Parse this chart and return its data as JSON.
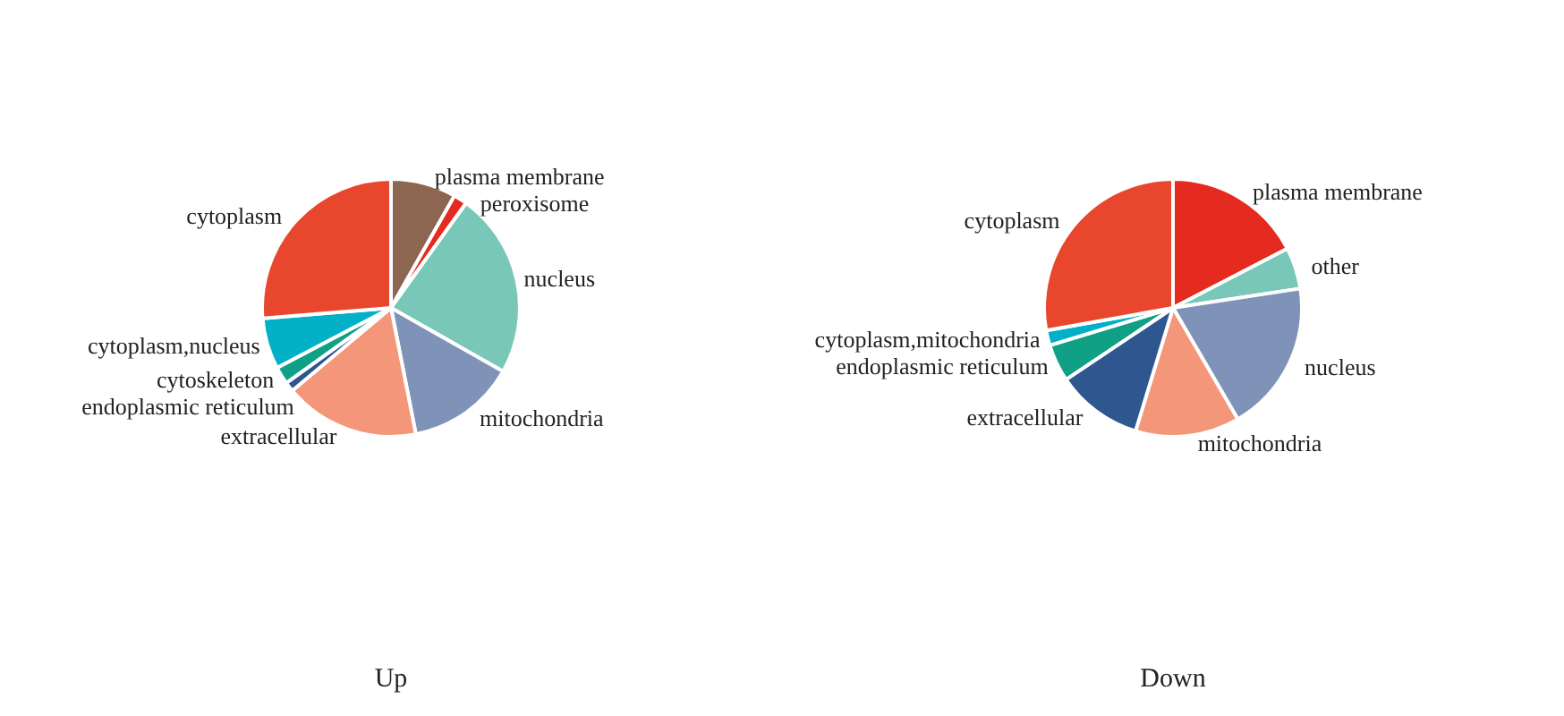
{
  "chart_data": [
    {
      "type": "pie",
      "title": "Up",
      "categories": [
        "plasma membrane",
        "peroxisome",
        "nucleus",
        "mitochondria",
        "extracellular",
        "endoplasmic reticulum",
        "cytoskeleton",
        "cytoplasm,nucleus",
        "cytoplasm"
      ],
      "values": [
        8.2,
        1.7,
        23.3,
        13.7,
        17,
        1.2,
        2.2,
        6.4,
        26.3
      ],
      "colors": [
        "#8c6650",
        "#e52a20",
        "#79c7b9",
        "#7f93b9",
        "#f4967a",
        "#2e5790",
        "#10a085",
        "#02b0c8",
        "#e8472d"
      ]
    },
    {
      "type": "pie",
      "title": "Down",
      "categories": [
        "plasma membrane",
        "other",
        "nucleus",
        "mitochondria",
        "extracellular",
        "endoplasmic reticulum",
        "cytoplasm,mitochondria",
        "cytoplasm"
      ],
      "values": [
        17.4,
        5.2,
        19,
        13.1,
        10.9,
        4.7,
        1.9,
        27.8
      ],
      "colors": [
        "#e52a20",
        "#79c7b9",
        "#7f93b9",
        "#f4967a",
        "#2e5790",
        "#10a085",
        "#02b0c8",
        "#e8472d"
      ]
    }
  ]
}
